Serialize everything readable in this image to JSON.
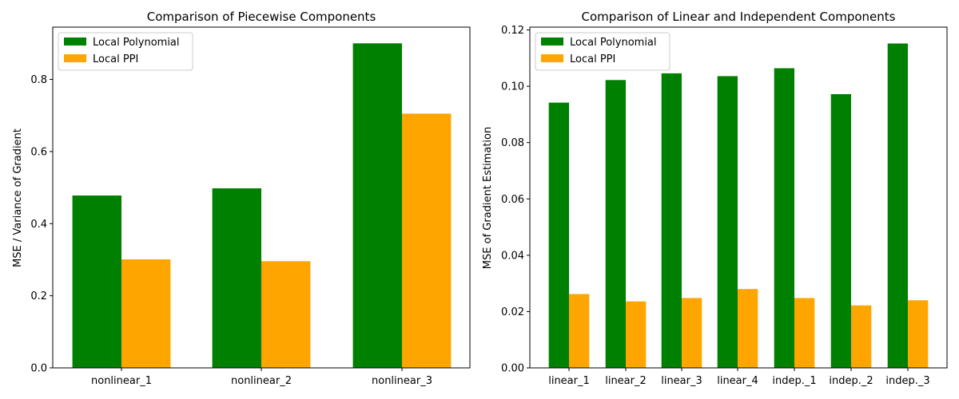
{
  "colors": {
    "series_1": "#008000",
    "series_2": "#ffa500",
    "axis": "#000000",
    "legend_border": "#cccccc"
  },
  "chart_data": [
    {
      "type": "bar",
      "title": "Comparison of Piecewise Components",
      "xlabel": "",
      "ylabel": "MSE / Variance of Gradient",
      "categories": [
        "nonlinear_1",
        "nonlinear_2",
        "nonlinear_3"
      ],
      "series": [
        {
          "name": "Local Polynomial",
          "values": [
            0.478,
            0.498,
            0.9
          ]
        },
        {
          "name": "Local PPI",
          "values": [
            0.301,
            0.296,
            0.705
          ]
        }
      ],
      "ylim": [
        0,
        0.945
      ],
      "yticks": [
        0.0,
        0.2,
        0.4,
        0.6,
        0.8
      ],
      "ytick_labels": [
        "0.0",
        "0.2",
        "0.4",
        "0.6",
        "0.8"
      ],
      "legend": "top-left",
      "grid": false
    },
    {
      "type": "bar",
      "title": "Comparison of Linear and Independent Components",
      "xlabel": "",
      "ylabel": "MSE of Gradient Estimation",
      "categories": [
        "linear_1",
        "linear_2",
        "linear_3",
        "linear_4",
        "indep._1",
        "indep._2",
        "indep._3"
      ],
      "series": [
        {
          "name": "Local Polynomial",
          "values": [
            0.0942,
            0.1022,
            0.1046,
            0.1036,
            0.1064,
            0.0972,
            0.1152
          ]
        },
        {
          "name": "Local PPI",
          "values": [
            0.0262,
            0.0236,
            0.0248,
            0.028,
            0.0248,
            0.0222,
            0.024
          ]
        }
      ],
      "ylim": [
        0,
        0.121
      ],
      "yticks": [
        0.0,
        0.02,
        0.04,
        0.06,
        0.08,
        0.1,
        0.12
      ],
      "ytick_labels": [
        "0.00",
        "0.02",
        "0.04",
        "0.06",
        "0.08",
        "0.10",
        "0.12"
      ],
      "legend": "top-left",
      "grid": false
    }
  ]
}
